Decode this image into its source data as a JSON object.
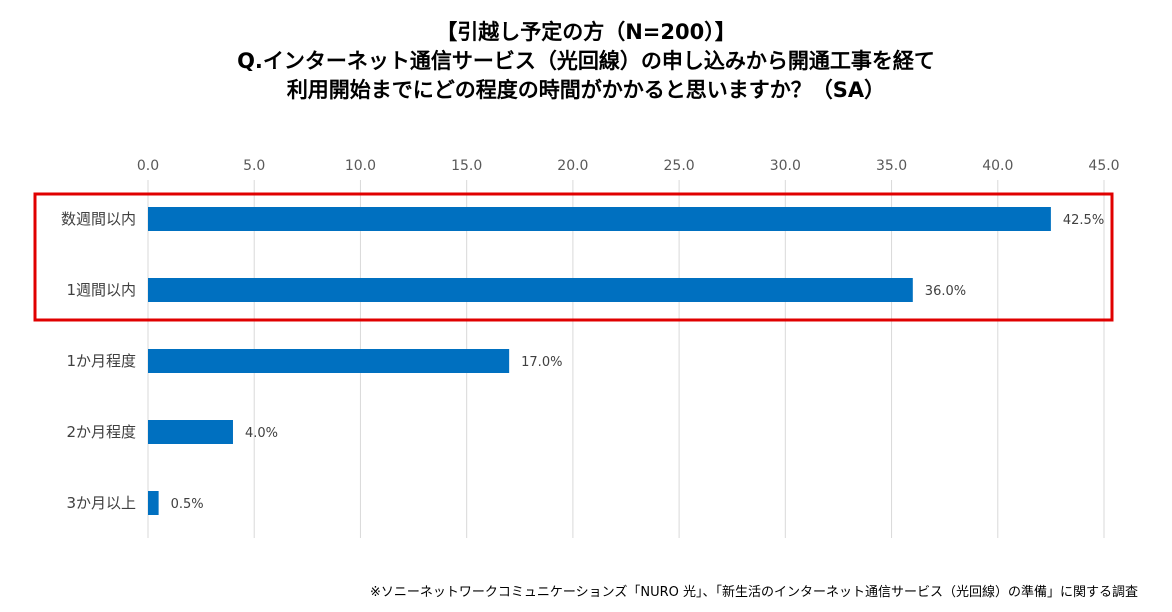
{
  "title": {
    "line1": "【引越し予定の方（N=200）】",
    "line2": "Q.インターネット通信サービス（光回線）の申し込みから開通工事を経て",
    "line3": "利用開始までにどの程度の時間がかかると思いますか？（SA）"
  },
  "footnote": "※ソニーネットワークコミュニケーションズ「NURO 光」、「新生活のインターネット通信サービス（光回線）の準備」に関する調査",
  "chart_data": {
    "type": "bar",
    "orientation": "horizontal",
    "title": "【引越し予定の方（N=200）】",
    "categories": [
      "数週間以内",
      "1週間以内",
      "1か月程度",
      "2か月程度",
      "3か月以上"
    ],
    "values": [
      42.5,
      36.0,
      17.0,
      4.0,
      0.5
    ],
    "value_labels": [
      "42.5%",
      "36.0%",
      "17.0%",
      "4.0%",
      "0.5%"
    ],
    "xlim": [
      0,
      45
    ],
    "ticks": [
      0,
      5,
      10,
      15,
      20,
      25,
      30,
      35,
      40,
      45
    ],
    "tick_labels": [
      "0.0",
      "5.0",
      "10.0",
      "15.0",
      "20.0",
      "25.0",
      "30.0",
      "35.0",
      "40.0",
      "45.0"
    ],
    "xlabel": "",
    "ylabel": "",
    "grid": true,
    "axis_position": "top",
    "highlighted_categories": [
      "数週間以内",
      "1週間以内"
    ],
    "colors": {
      "bar": "#0070C0",
      "grid": "#D9D9D9",
      "highlight": "#E00000"
    }
  }
}
